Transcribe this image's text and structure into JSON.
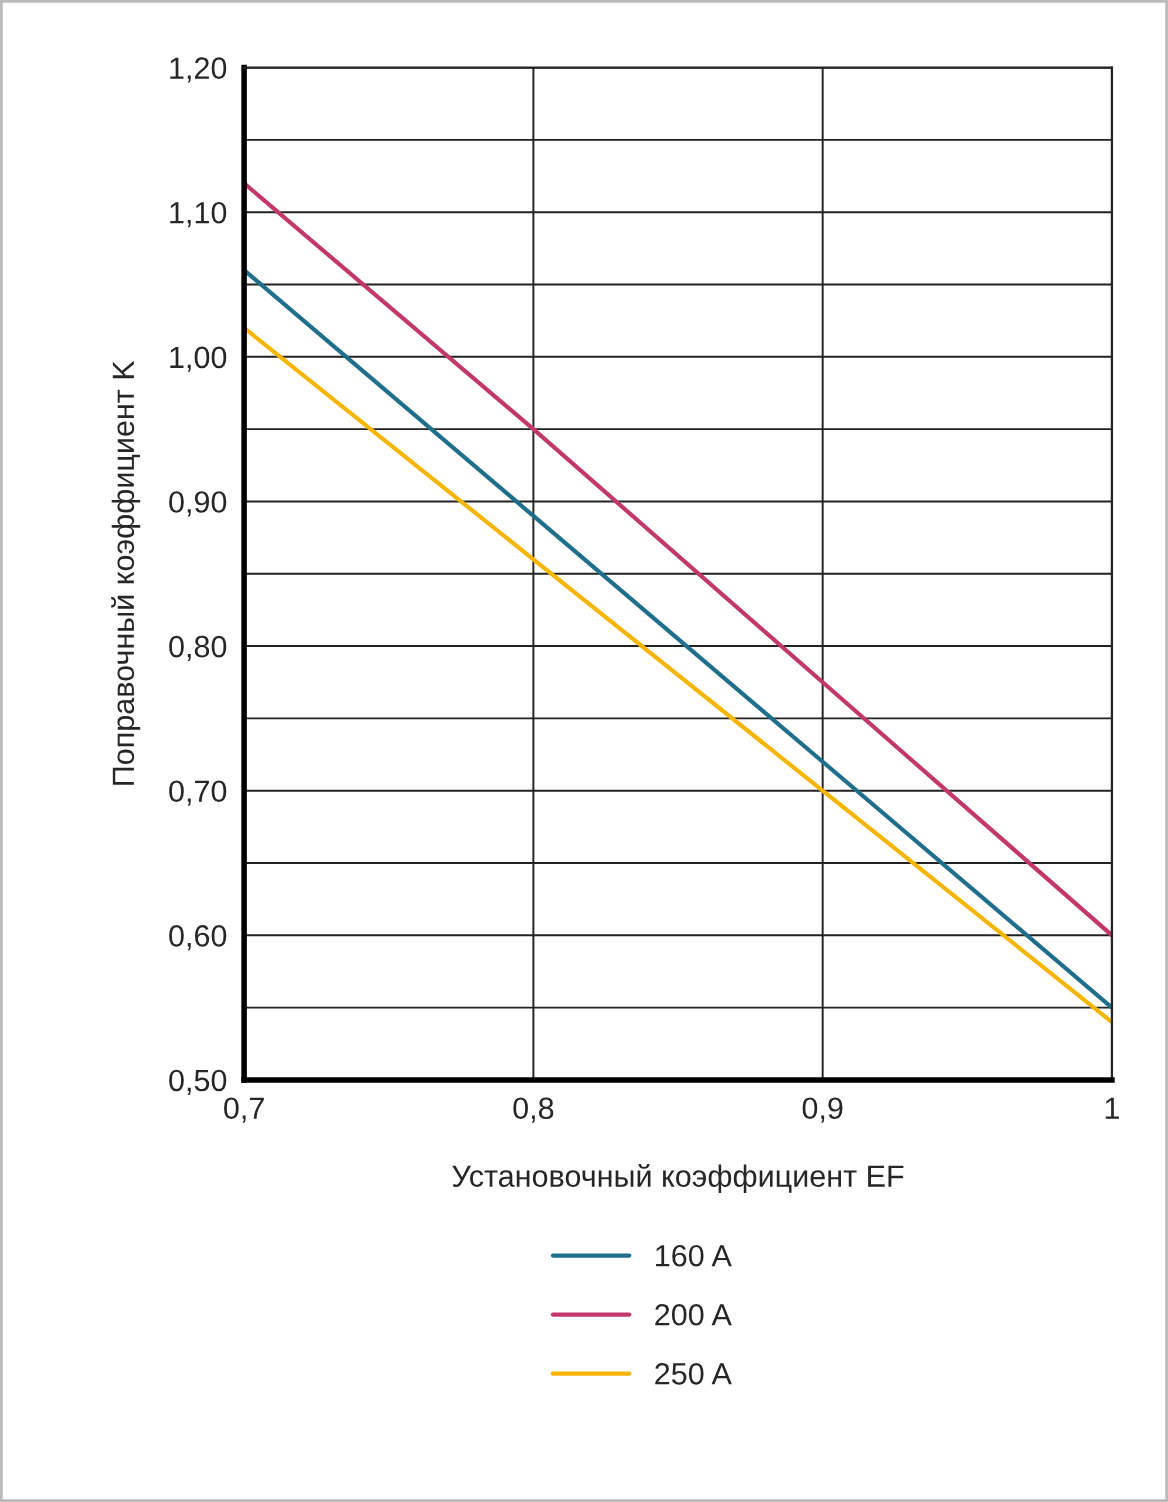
{
  "chart_data": {
    "type": "line",
    "xlabel": "Установочный коэффициент EF",
    "ylabel": "Поправочный коэффициент K",
    "x": [
      0.7,
      0.8,
      0.9,
      1.0
    ],
    "series": [
      {
        "name": "160 A",
        "color": "#1f6f8b",
        "values": [
          1.06,
          0.89,
          0.72,
          0.55
        ]
      },
      {
        "name": "200 A",
        "color": "#c2386b",
        "values": [
          1.12,
          0.95,
          0.775,
          0.6
        ]
      },
      {
        "name": "250 A",
        "color": "#f7b500",
        "values": [
          1.02,
          0.86,
          0.7,
          0.54
        ]
      }
    ],
    "xlim": [
      0.7,
      1.0
    ],
    "xticks": [
      {
        "value": 0.7,
        "label": "0,7"
      },
      {
        "value": 0.8,
        "label": "0,8"
      },
      {
        "value": 0.9,
        "label": "0,9"
      },
      {
        "value": 1.0,
        "label": "1"
      }
    ],
    "ylim": [
      0.5,
      1.2
    ],
    "yticks": [
      {
        "value": 0.5,
        "label": "0,50"
      },
      {
        "value": 0.55,
        "label": null
      },
      {
        "value": 0.6,
        "label": "0,60"
      },
      {
        "value": 0.65,
        "label": null
      },
      {
        "value": 0.7,
        "label": "0,70"
      },
      {
        "value": 0.75,
        "label": null
      },
      {
        "value": 0.8,
        "label": "0,80"
      },
      {
        "value": 0.85,
        "label": null
      },
      {
        "value": 0.9,
        "label": "0,90"
      },
      {
        "value": 0.95,
        "label": null
      },
      {
        "value": 1.0,
        "label": "1,00"
      },
      {
        "value": 1.05,
        "label": null
      },
      {
        "value": 1.1,
        "label": "1,10"
      },
      {
        "value": 1.15,
        "label": null
      },
      {
        "value": 1.2,
        "label": "1,20"
      }
    ],
    "grid": true,
    "legend": "bottom",
    "marker": "none",
    "line_style": "solid"
  }
}
